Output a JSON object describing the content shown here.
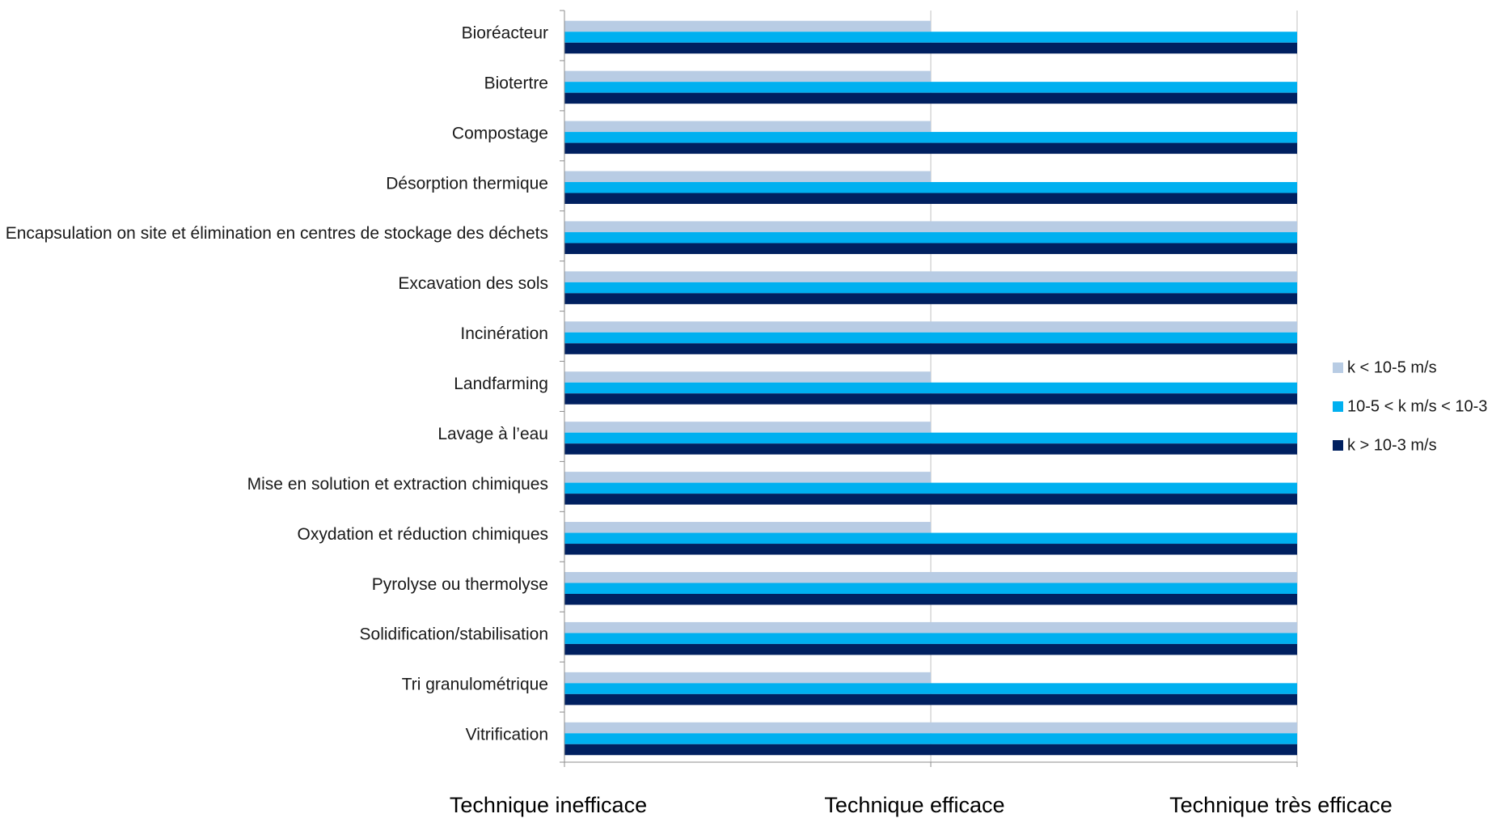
{
  "chart_data": {
    "type": "bar",
    "orientation": "horizontal",
    "categories": [
      "Bioréacteur",
      "Biotertre",
      "Compostage",
      "Désorption thermique",
      "Encapsulation on site et élimination en centres de stockage des déchets",
      "Excavation des sols",
      "Incinération",
      "Landfarming",
      "Lavage à l’eau",
      "Mise en solution et extraction chimiques",
      "Oxydation et réduction chimiques",
      "Pyrolyse ou thermolyse",
      "Solidification/stabilisation",
      "Tri granulométrique",
      "Vitrification"
    ],
    "series": [
      {
        "name": "k < 10-5 m/s",
        "color": "#b8cce4",
        "values": [
          1,
          1,
          1,
          1,
          2,
          2,
          2,
          1,
          1,
          1,
          1,
          2,
          2,
          1,
          2
        ]
      },
      {
        "name": "10-5 < k m/s < 10-3",
        "color": "#00b0f0",
        "values": [
          2,
          2,
          2,
          2,
          2,
          2,
          2,
          2,
          2,
          2,
          2,
          2,
          2,
          2,
          2
        ]
      },
      {
        "name": "k > 10-3 m/s",
        "color": "#002060",
        "values": [
          2,
          2,
          2,
          2,
          2,
          2,
          2,
          2,
          2,
          2,
          2,
          2,
          2,
          2,
          2
        ]
      }
    ],
    "x_ticks": [
      {
        "value": 0,
        "label": "Technique inefficace"
      },
      {
        "value": 1,
        "label": "Technique efficace"
      },
      {
        "value": 2,
        "label": "Technique très efficace"
      }
    ],
    "xlim": [
      0,
      2
    ],
    "grid": "vertical",
    "legend_position": "right",
    "title": "",
    "xlabel": "",
    "ylabel": ""
  }
}
